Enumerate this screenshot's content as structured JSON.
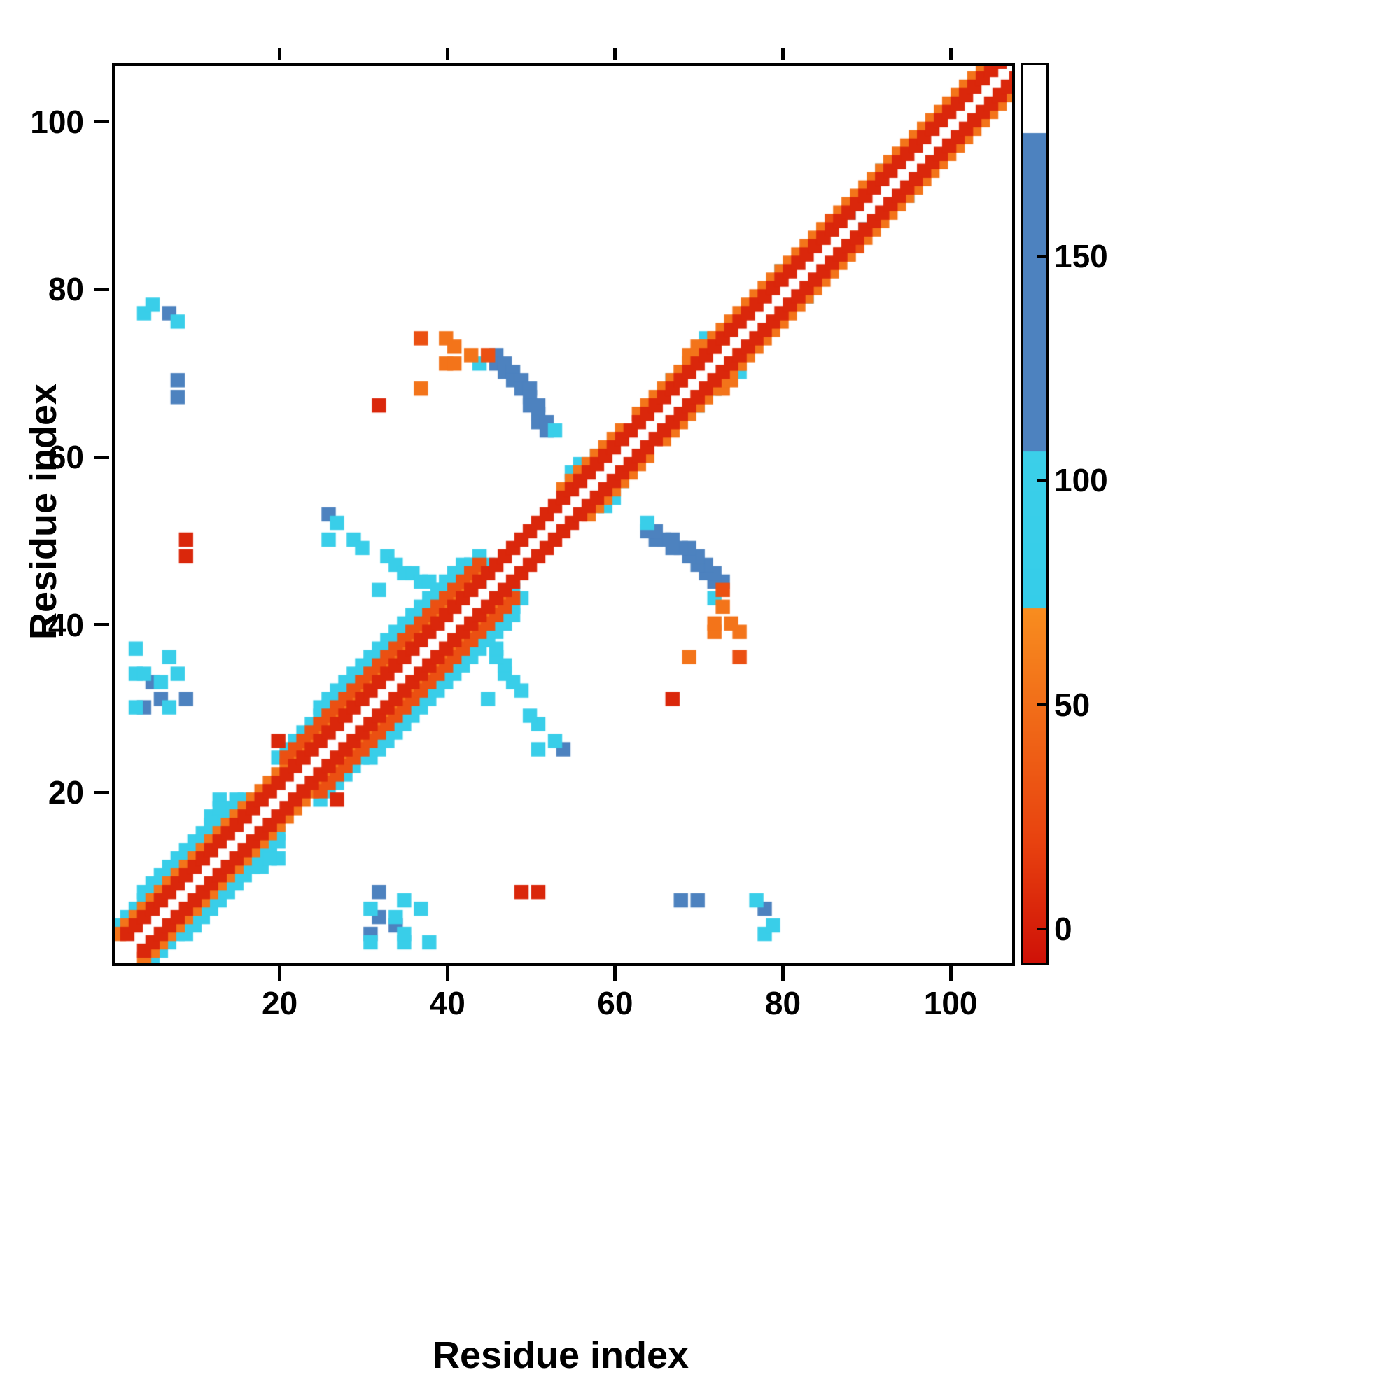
{
  "figure": {
    "xlabel": "Residue index",
    "ylabel": "Residue index"
  },
  "chart_data": {
    "type": "heatmap",
    "title": "",
    "xlabel": "Residue index",
    "ylabel": "Residue index",
    "xlim": [
      0,
      107
    ],
    "ylim": [
      0,
      107
    ],
    "x_ticks": [
      20,
      40,
      60,
      80,
      100
    ],
    "y_ticks": [
      20,
      40,
      60,
      80,
      100
    ],
    "grid": false,
    "symmetric": true,
    "cell_size": 1.7,
    "background_color": "#ffffff",
    "colorbar": {
      "position": "right",
      "ticks": [
        0,
        50,
        100,
        150
      ],
      "vmin": -7,
      "vmax": 193,
      "stops": [
        [
          -7,
          "#cf1107"
        ],
        [
          20,
          "#e8420f"
        ],
        [
          72,
          "#f88d1f"
        ],
        [
          72.01,
          "#35cde9"
        ],
        [
          107,
          "#3bcfe9"
        ],
        [
          107.01,
          "#4d82bf"
        ],
        [
          178,
          "#4d82bf"
        ],
        [
          178.01,
          "#ffffff"
        ],
        [
          193,
          "#ffffff"
        ]
      ]
    },
    "value_legend": {
      "red": 5,
      "red_orange": 30,
      "orange": 55,
      "cyan": 95,
      "blue": 140
    },
    "diagonal_runs": [
      {
        "from": 1,
        "to": 105,
        "offset": 2,
        "v": 5
      },
      {
        "from": 0,
        "to": 43,
        "offset": 3,
        "v": 55
      },
      {
        "from": 53,
        "to": 60,
        "offset": 3,
        "v": 55
      },
      {
        "from": 62,
        "to": 104,
        "offset": 3,
        "v": 55
      },
      {
        "from": 0,
        "to": 15,
        "offset": 4,
        "v": 95
      },
      {
        "from": 20,
        "to": 43,
        "offset": 4,
        "v": 30
      },
      {
        "from": 3,
        "to": 14,
        "offset": 5,
        "v": 95
      },
      {
        "from": 19,
        "to": 43,
        "offset": 5,
        "v": 95
      },
      {
        "from": 24,
        "to": 40,
        "offset": 6,
        "v": 95
      }
    ],
    "cells": [
      [
        2,
        37,
        95
      ],
      [
        6,
        36,
        95
      ],
      [
        2,
        34,
        95
      ],
      [
        3,
        34,
        95
      ],
      [
        4,
        33,
        140
      ],
      [
        5,
        33,
        95
      ],
      [
        5,
        31,
        140
      ],
      [
        2,
        30,
        95
      ],
      [
        3,
        30,
        140
      ],
      [
        6,
        30,
        95
      ],
      [
        8,
        31,
        140
      ],
      [
        7,
        34,
        95
      ],
      [
        3,
        77,
        95
      ],
      [
        4,
        78,
        95
      ],
      [
        6,
        77,
        140
      ],
      [
        7,
        69,
        140
      ],
      [
        7,
        67,
        140
      ],
      [
        7,
        76,
        95
      ],
      [
        8,
        48,
        5
      ],
      [
        8,
        50,
        5
      ],
      [
        12,
        19,
        95
      ],
      [
        11,
        17,
        95
      ],
      [
        12,
        18,
        95
      ],
      [
        13,
        18,
        140
      ],
      [
        11,
        16,
        95
      ],
      [
        19,
        26,
        5
      ],
      [
        25,
        53,
        140
      ],
      [
        26,
        52,
        95
      ],
      [
        25,
        50,
        95
      ],
      [
        28,
        50,
        95
      ],
      [
        29,
        49,
        95
      ],
      [
        32,
        48,
        95
      ],
      [
        33,
        47,
        95
      ],
      [
        34,
        46,
        95
      ],
      [
        35,
        46,
        95
      ],
      [
        36,
        45,
        95
      ],
      [
        37,
        45,
        95
      ],
      [
        31,
        44,
        95
      ],
      [
        38,
        44,
        95
      ],
      [
        38,
        43,
        95
      ],
      [
        39,
        44,
        95
      ],
      [
        40,
        44,
        140
      ],
      [
        40,
        45,
        140
      ],
      [
        40,
        46,
        140
      ],
      [
        41,
        45,
        95
      ],
      [
        41,
        47,
        95
      ],
      [
        42,
        46,
        95
      ],
      [
        43,
        46,
        95
      ],
      [
        44,
        47,
        95
      ],
      [
        43,
        45,
        95
      ],
      [
        42,
        47,
        95
      ],
      [
        45,
        72,
        140
      ],
      [
        45,
        71,
        140
      ],
      [
        46,
        71,
        140
      ],
      [
        46,
        70,
        140
      ],
      [
        47,
        70,
        140
      ],
      [
        47,
        69,
        140
      ],
      [
        48,
        69,
        140
      ],
      [
        48,
        68,
        140
      ],
      [
        49,
        68,
        140
      ],
      [
        49,
        67,
        140
      ],
      [
        49,
        66,
        140
      ],
      [
        50,
        66,
        140
      ],
      [
        50,
        65,
        140
      ],
      [
        50,
        64,
        140
      ],
      [
        51,
        64,
        140
      ],
      [
        51,
        63,
        140
      ],
      [
        52,
        63,
        95
      ],
      [
        44,
        72,
        30
      ],
      [
        36,
        74,
        30
      ],
      [
        39,
        74,
        55
      ],
      [
        39,
        71,
        55
      ],
      [
        40,
        71,
        55
      ],
      [
        31,
        66,
        5
      ],
      [
        42,
        72,
        55
      ],
      [
        36,
        68,
        55
      ],
      [
        40,
        73,
        55
      ],
      [
        43,
        71,
        95
      ],
      [
        54,
        57,
        95
      ],
      [
        55,
        58,
        95
      ],
      [
        56,
        59,
        95
      ],
      [
        57,
        60,
        95
      ],
      [
        54,
        58,
        95
      ],
      [
        55,
        59,
        95
      ],
      [
        60,
        63,
        55
      ],
      [
        66,
        69,
        95
      ],
      [
        67,
        70,
        55
      ],
      [
        68,
        71,
        95
      ],
      [
        68,
        72,
        55
      ],
      [
        69,
        72,
        55
      ],
      [
        69,
        73,
        55
      ],
      [
        70,
        73,
        55
      ],
      [
        70,
        74,
        95
      ],
      [
        71,
        74,
        55
      ],
      [
        71,
        73,
        30
      ],
      [
        72,
        74,
        55
      ],
      [
        67,
        69,
        30
      ],
      [
        79,
        82,
        95
      ],
      [
        84,
        86,
        30
      ],
      [
        84,
        87,
        55
      ],
      [
        85,
        87,
        55
      ],
      [
        85,
        88,
        30
      ],
      [
        86,
        88,
        55
      ],
      [
        87,
        89,
        95
      ],
      [
        91,
        94,
        95
      ],
      [
        92,
        95,
        55
      ],
      [
        93,
        95,
        95
      ],
      [
        93,
        96,
        55
      ],
      [
        95,
        97,
        95
      ]
    ]
  }
}
